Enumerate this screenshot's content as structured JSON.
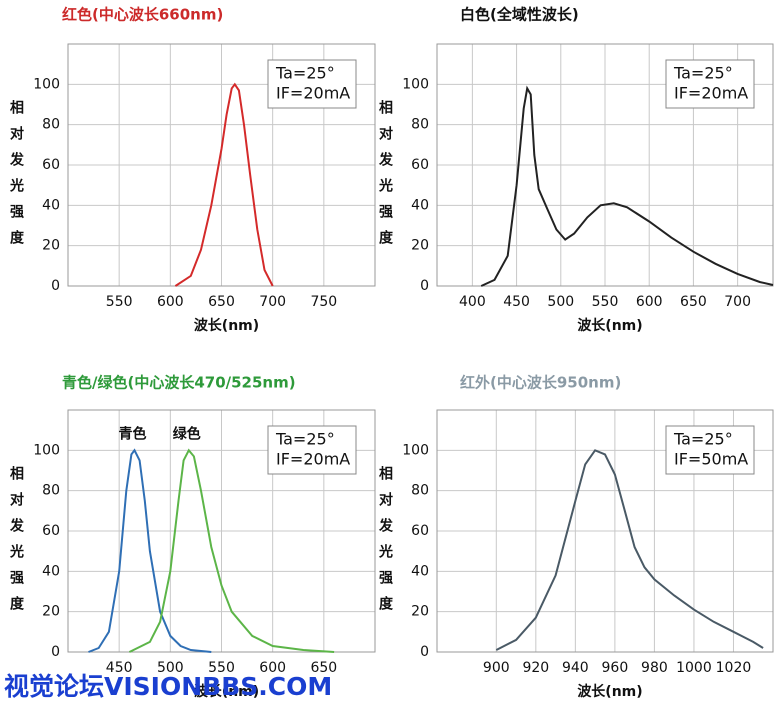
{
  "chart_data": [
    {
      "type": "line",
      "title": "红色(中心波长660nm)",
      "title_color": "#cc2a2a",
      "xlabel": "波长(nm)",
      "ylabel": "相对发光强度",
      "annotations": [
        "Ta=25°",
        "IF=20mA"
      ],
      "xlim": [
        500,
        800
      ],
      "xticks": [
        550,
        600,
        650,
        700,
        750
      ],
      "ylim": [
        0,
        120
      ],
      "yticks": [
        0,
        20,
        40,
        60,
        80,
        100
      ],
      "grid": true,
      "series": [
        {
          "color": "#d42a2a",
          "x": [
            605,
            620,
            630,
            640,
            650,
            655,
            660,
            663,
            667,
            672,
            678,
            685,
            692,
            700
          ],
          "values": [
            0,
            5,
            18,
            40,
            68,
            85,
            98,
            100,
            97,
            80,
            55,
            28,
            8,
            0
          ]
        }
      ]
    },
    {
      "type": "line",
      "title": "白色(全域性波长)",
      "title_color": "#111111",
      "xlabel": "波长(nm)",
      "ylabel": "相对发光强度",
      "annotations": [
        "Ta=25°",
        "IF=20mA"
      ],
      "xlim": [
        360,
        740
      ],
      "xticks": [
        400,
        450,
        500,
        550,
        600,
        650,
        700
      ],
      "ylim": [
        0,
        120
      ],
      "yticks": [
        0,
        20,
        40,
        60,
        80,
        100
      ],
      "grid": true,
      "series": [
        {
          "color": "#222222",
          "x": [
            410,
            425,
            440,
            450,
            458,
            462,
            466,
            470,
            475,
            485,
            495,
            505,
            515,
            530,
            545,
            560,
            575,
            600,
            625,
            650,
            675,
            700,
            725,
            740
          ],
          "values": [
            0,
            3,
            15,
            50,
            88,
            98,
            95,
            65,
            48,
            38,
            28,
            23,
            26,
            34,
            40,
            41,
            39,
            32,
            24,
            17,
            11,
            6,
            2,
            0.5
          ]
        }
      ]
    },
    {
      "type": "line",
      "title": "青色/绿色(中心波长470/525nm)",
      "title_color": "#2e9a3a",
      "xlabel": "波长(nm)",
      "ylabel": "相对发光强度",
      "annotations": [
        "Ta=25°",
        "IF=20mA"
      ],
      "xlim": [
        400,
        700
      ],
      "xticks": [
        450,
        500,
        550,
        600,
        650
      ],
      "ylim": [
        0,
        120
      ],
      "yticks": [
        0,
        20,
        40,
        60,
        80,
        100
      ],
      "grid": true,
      "series": [
        {
          "name": "青色",
          "color": "#2f6fb5",
          "x": [
            420,
            430,
            440,
            450,
            457,
            462,
            465,
            470,
            475,
            480,
            490,
            500,
            510,
            520,
            540
          ],
          "values": [
            0,
            2,
            10,
            40,
            80,
            98,
            100,
            95,
            75,
            50,
            20,
            8,
            3,
            1,
            0
          ]
        },
        {
          "name": "绿色",
          "color": "#5cb548",
          "x": [
            460,
            480,
            490,
            500,
            508,
            513,
            518,
            523,
            530,
            540,
            550,
            560,
            580,
            600,
            630,
            660
          ],
          "values": [
            0,
            5,
            15,
            40,
            75,
            95,
            100,
            97,
            80,
            52,
            33,
            20,
            8,
            3,
            1,
            0
          ]
        }
      ]
    },
    {
      "type": "line",
      "title": "红外(中心波长950nm)",
      "title_color": "#8a9aa5",
      "xlabel": "波长(nm)",
      "ylabel": "相对发光强度",
      "annotations": [
        "Ta=25°",
        "IF=50mA"
      ],
      "xlim": [
        870,
        1040
      ],
      "xticks": [
        900,
        920,
        940,
        960,
        980,
        1000,
        1020
      ],
      "ylim": [
        0,
        120
      ],
      "yticks": [
        0,
        20,
        40,
        60,
        80,
        100
      ],
      "grid": true,
      "series": [
        {
          "color": "#4a5a66",
          "x": [
            900,
            910,
            920,
            930,
            940,
            945,
            950,
            955,
            960,
            965,
            970,
            975,
            980,
            990,
            1000,
            1010,
            1020,
            1030,
            1035
          ],
          "values": [
            1,
            6,
            17,
            38,
            75,
            93,
            100,
            98,
            88,
            70,
            52,
            42,
            36,
            28,
            21,
            15,
            10,
            5,
            2
          ]
        }
      ]
    }
  ],
  "watermark": "视觉论坛VISIONBBS.COM"
}
